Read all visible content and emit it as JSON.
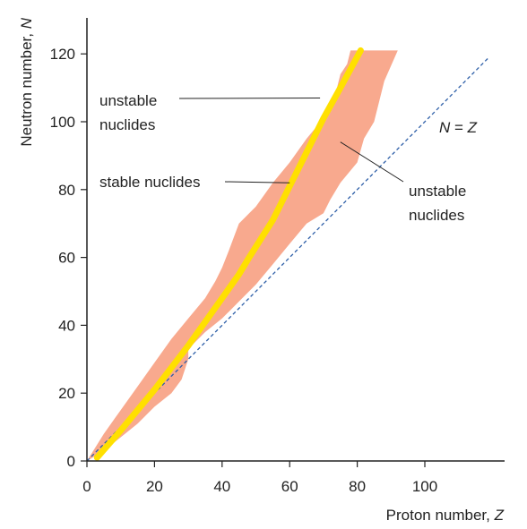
{
  "chart_data": {
    "type": "area",
    "x_axis": {
      "label_text": "Proton number, ",
      "label_var": "Z",
      "range": [
        0,
        120
      ],
      "ticks": [
        0,
        20,
        40,
        60,
        80,
        100
      ]
    },
    "y_axis": {
      "label_text": "Neutron number, ",
      "label_var": "N",
      "range": [
        0,
        122
      ],
      "ticks": [
        0,
        20,
        40,
        60,
        80,
        100,
        120
      ]
    },
    "grid": false,
    "band": {
      "upper": [
        [
          0,
          0
        ],
        [
          5,
          8
        ],
        [
          10,
          15
        ],
        [
          15,
          22
        ],
        [
          20,
          29
        ],
        [
          25,
          36
        ],
        [
          30,
          42
        ],
        [
          35,
          48
        ],
        [
          38,
          53
        ],
        [
          40,
          57
        ],
        [
          42,
          62
        ],
        [
          45,
          70
        ],
        [
          50,
          75
        ],
        [
          55,
          82
        ],
        [
          60,
          88
        ],
        [
          65,
          95
        ],
        [
          70,
          101
        ],
        [
          72,
          106
        ],
        [
          74,
          110
        ],
        [
          75,
          114
        ],
        [
          77,
          117
        ],
        [
          78,
          121
        ],
        [
          92,
          121
        ]
      ],
      "lower": [
        [
          88,
          112
        ],
        [
          85,
          100
        ],
        [
          82,
          95
        ],
        [
          80,
          88
        ],
        [
          75,
          82
        ],
        [
          72,
          77
        ],
        [
          70,
          73
        ],
        [
          65,
          70
        ],
        [
          60,
          64
        ],
        [
          55,
          58
        ],
        [
          50,
          52
        ],
        [
          45,
          47
        ],
        [
          40,
          42
        ],
        [
          35,
          38
        ],
        [
          30,
          33
        ],
        [
          30,
          30
        ],
        [
          28,
          24
        ],
        [
          25,
          20
        ],
        [
          20,
          16
        ],
        [
          15,
          11
        ],
        [
          10,
          7
        ],
        [
          5,
          3
        ],
        [
          0,
          0
        ]
      ],
      "color": "#f8a98e"
    },
    "stability_line": {
      "points": [
        [
          3,
          1
        ],
        [
          10,
          9
        ],
        [
          20,
          21
        ],
        [
          30,
          34
        ],
        [
          40,
          48
        ],
        [
          45,
          55
        ],
        [
          48,
          60
        ],
        [
          55,
          71
        ],
        [
          60,
          81
        ],
        [
          65,
          91
        ],
        [
          70,
          101
        ],
        [
          75,
          110
        ],
        [
          81,
          121
        ]
      ],
      "color": "#ffe000"
    },
    "reference_line": {
      "points": [
        [
          0,
          0
        ],
        [
          119,
          119
        ]
      ],
      "color": "#2e5fa8"
    },
    "annotations": [
      {
        "line1": "unstable",
        "line2": "nuclides",
        "points_to": [
          69,
          107
        ]
      },
      {
        "line1": "stable nuclides",
        "points_to": [
          60,
          82
        ]
      },
      {
        "line1": "unstable",
        "line2": "nuclides",
        "points_to": [
          75,
          94
        ]
      }
    ],
    "ref_label": {
      "var_left": "N",
      "eq": " = ",
      "var_right": "Z"
    }
  }
}
